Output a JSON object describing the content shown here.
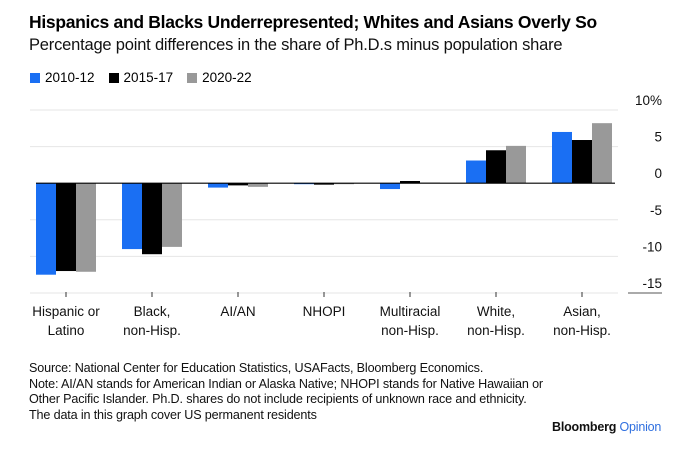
{
  "header": {
    "title": "Hispanics and Blacks Underrepresented; Whites and Asians Overly So",
    "subtitle": "Percentage point differences in the share of Ph.D.s minus population share"
  },
  "legend": [
    {
      "label": "2010-12",
      "color": "#1a6ff3"
    },
    {
      "label": "2015-17",
      "color": "#000000"
    },
    {
      "label": "2020-22",
      "color": "#999999"
    }
  ],
  "chart_data": {
    "type": "bar",
    "title": "Hispanics and Blacks Underrepresented; Whites and Asians Overly So",
    "subtitle": "Percentage point differences in the share of Ph.D.s minus population share",
    "xlabel": "",
    "ylabel": "",
    "categories": [
      [
        "Hispanic or",
        "Latino"
      ],
      [
        "Black,",
        "non-Hisp."
      ],
      [
        "AI/AN"
      ],
      [
        "NHOPI"
      ],
      [
        "Multiracial",
        "non-Hisp."
      ],
      [
        "White,",
        "non-Hisp."
      ],
      [
        "Asian,",
        "non-Hisp."
      ]
    ],
    "series": [
      {
        "name": "2010-12",
        "color": "#1a6ff3",
        "values": [
          -12.5,
          -9.0,
          -0.6,
          -0.1,
          -0.8,
          3.1,
          7.0
        ]
      },
      {
        "name": "2015-17",
        "color": "#000000",
        "values": [
          -12.0,
          -9.7,
          -0.3,
          -0.2,
          0.3,
          4.5,
          5.9
        ]
      },
      {
        "name": "2020-22",
        "color": "#999999",
        "values": [
          -12.1,
          -8.7,
          -0.5,
          -0.1,
          0.1,
          5.1,
          8.2
        ]
      }
    ],
    "ylim": [
      -15,
      10
    ],
    "yticks": [
      10,
      5,
      0,
      -5,
      -10,
      -15
    ],
    "ytick_labels": [
      "10%",
      "5",
      "0",
      "-5",
      "-10",
      "-15"
    ],
    "y_axis_side": "right",
    "grid": true,
    "legend_position": "top-left"
  },
  "footnote": {
    "source": "Source: National Center for Education Statistics, USAFacts, Bloomberg Economics.",
    "note": "Note: AI/AN stands for American Indian or Alaska Native; NHOPI stands for Native Hawaiian or Other Pacific Islander. Ph.D. shares do not include recipients of unknown race and ethnicity. The data in this graph cover US permanent residents"
  },
  "brand": {
    "name": "Bloomberg",
    "section": "Opinion"
  }
}
